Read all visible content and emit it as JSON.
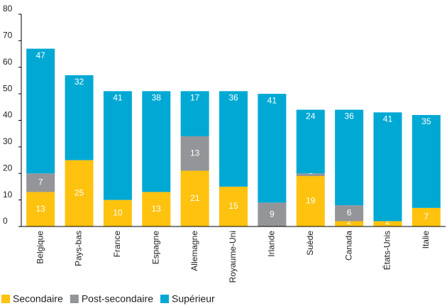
{
  "chart_data": {
    "type": "stacked_bar",
    "categories": [
      "Belgique",
      "Pays-bas",
      "France",
      "Espagne",
      "Allemagne",
      "Royaume-Uni",
      "Irlande",
      "Suède",
      "Canada",
      "États-Unis",
      "Italie"
    ],
    "series": [
      {
        "name": "Secondaire",
        "color": "#ffc20e",
        "values": [
          13,
          25,
          10,
          13,
          21,
          15,
          null,
          19,
          2,
          2,
          7
        ]
      },
      {
        "name": "Post-secondaire",
        "color": "#939598",
        "values": [
          7,
          null,
          null,
          null,
          13,
          null,
          9,
          1,
          6,
          null,
          null
        ]
      },
      {
        "name": "Supérieur",
        "color": "#00a9d4",
        "values": [
          47,
          32,
          41,
          38,
          17,
          36,
          41,
          24,
          36,
          41,
          35
        ]
      }
    ],
    "ylim": [
      0,
      80
    ],
    "yticks": [
      0,
      10,
      20,
      30,
      40,
      50,
      60,
      70,
      80
    ],
    "legend": "bottom-left"
  }
}
